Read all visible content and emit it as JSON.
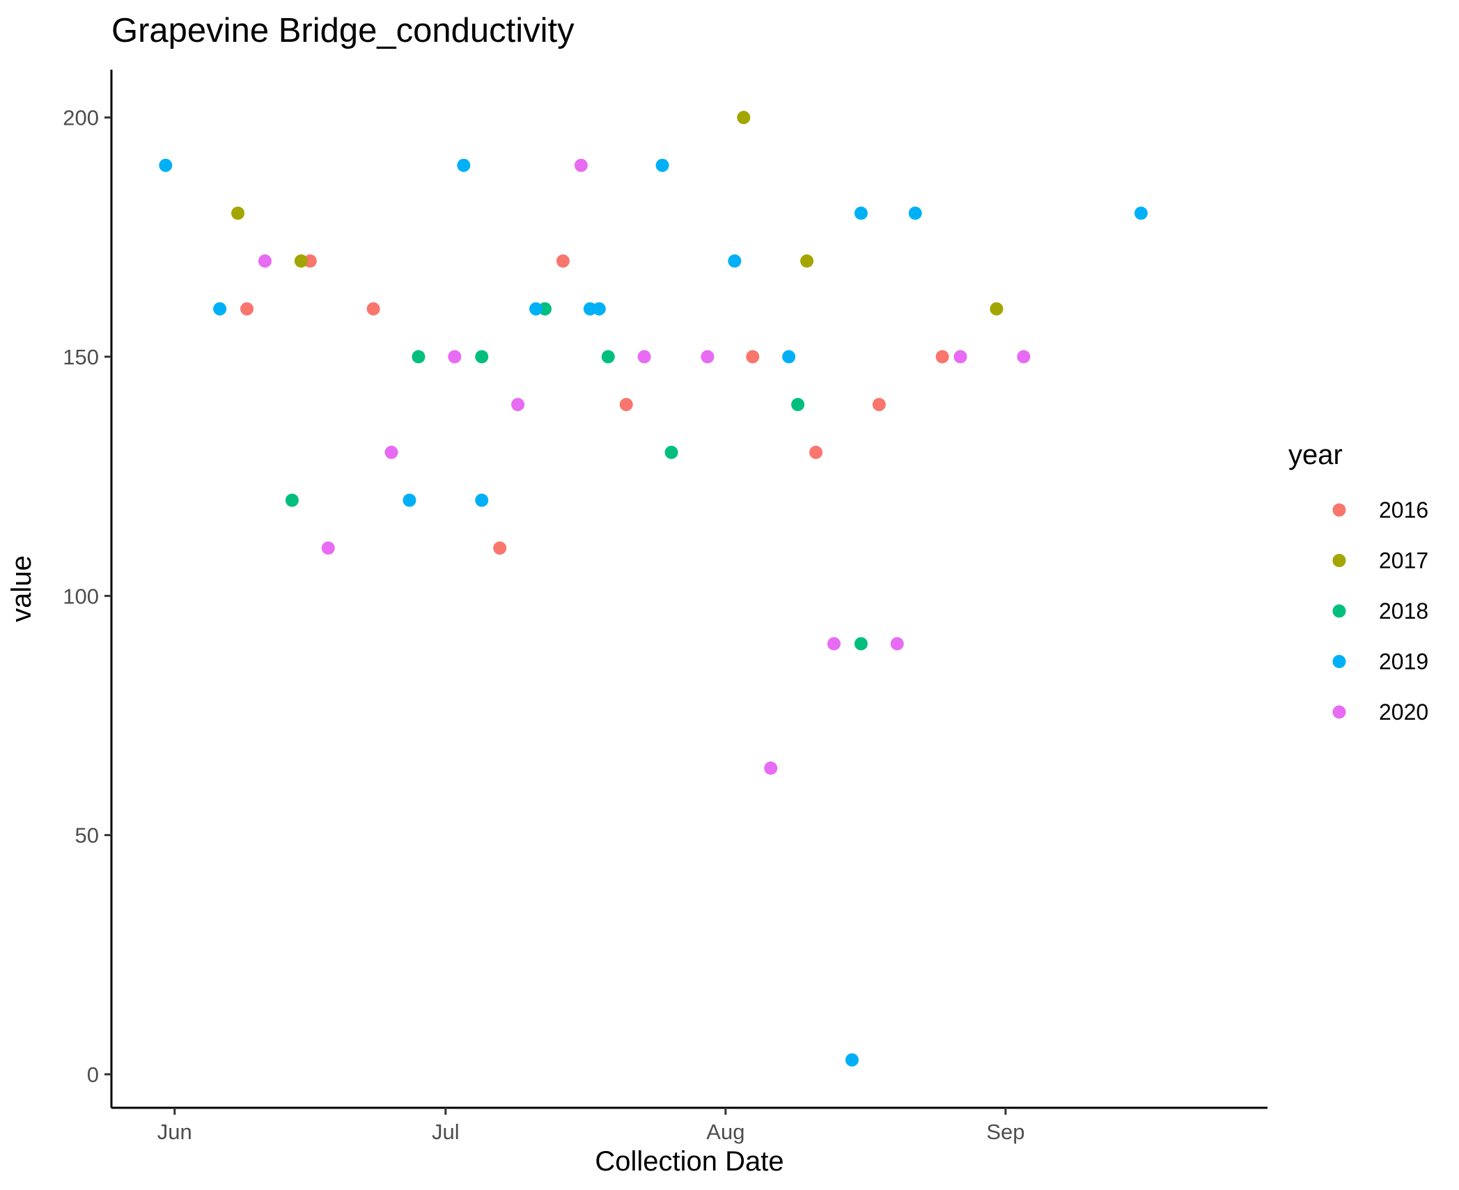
{
  "chart_data": {
    "type": "scatter",
    "title": "Grapevine Bridge_conductivity",
    "xlabel": "Collection Date",
    "ylabel": "value",
    "x_axis_type": "date",
    "xlim": [
      "2021-05-25",
      "2021-09-30"
    ],
    "ylim": [
      -7,
      210
    ],
    "x_ticks": [
      {
        "date": "2021-06-01",
        "label": "Jun"
      },
      {
        "date": "2021-07-01",
        "label": "Jul"
      },
      {
        "date": "2021-08-01",
        "label": "Aug"
      },
      {
        "date": "2021-09-01",
        "label": "Sep"
      }
    ],
    "y_ticks": [
      {
        "value": 0,
        "label": "0"
      },
      {
        "value": 50,
        "label": "50"
      },
      {
        "value": 100,
        "label": "100"
      },
      {
        "value": 150,
        "label": "150"
      },
      {
        "value": 200,
        "label": "200"
      }
    ],
    "grid": false,
    "legend": {
      "title": "year",
      "placement": "right"
    },
    "series": [
      {
        "name": "2016",
        "color": "#F8766D",
        "points": [
          {
            "x": "2021-06-09",
            "y": 160
          },
          {
            "x": "2021-06-16",
            "y": 170
          },
          {
            "x": "2021-06-23",
            "y": 160
          },
          {
            "x": "2021-07-07",
            "y": 110
          },
          {
            "x": "2021-07-14",
            "y": 170
          },
          {
            "x": "2021-07-21",
            "y": 140
          },
          {
            "x": "2021-08-04",
            "y": 150
          },
          {
            "x": "2021-08-11",
            "y": 130
          },
          {
            "x": "2021-08-18",
            "y": 140
          },
          {
            "x": "2021-08-25",
            "y": 150
          }
        ]
      },
      {
        "name": "2017",
        "color": "#A3A500",
        "points": [
          {
            "x": "2021-06-08",
            "y": 180
          },
          {
            "x": "2021-06-15",
            "y": 170
          },
          {
            "x": "2021-08-03",
            "y": 200
          },
          {
            "x": "2021-08-10",
            "y": 170
          },
          {
            "x": "2021-08-31",
            "y": 160
          }
        ]
      },
      {
        "name": "2018",
        "color": "#00BF7D",
        "points": [
          {
            "x": "2021-06-14",
            "y": 120
          },
          {
            "x": "2021-06-28",
            "y": 150
          },
          {
            "x": "2021-07-05",
            "y": 150
          },
          {
            "x": "2021-07-12",
            "y": 160
          },
          {
            "x": "2021-07-19",
            "y": 150
          },
          {
            "x": "2021-07-26",
            "y": 130
          },
          {
            "x": "2021-08-09",
            "y": 140
          },
          {
            "x": "2021-08-16",
            "y": 90
          }
        ]
      },
      {
        "name": "2019",
        "color": "#00B0F6",
        "points": [
          {
            "x": "2021-05-31",
            "y": 190
          },
          {
            "x": "2021-06-06",
            "y": 160
          },
          {
            "x": "2021-06-27",
            "y": 120
          },
          {
            "x": "2021-07-03",
            "y": 190
          },
          {
            "x": "2021-07-05",
            "y": 120
          },
          {
            "x": "2021-07-11",
            "y": 160
          },
          {
            "x": "2021-07-17",
            "y": 160
          },
          {
            "x": "2021-07-18",
            "y": 160
          },
          {
            "x": "2021-07-25",
            "y": 190
          },
          {
            "x": "2021-08-02",
            "y": 170
          },
          {
            "x": "2021-08-08",
            "y": 150
          },
          {
            "x": "2021-08-15",
            "y": 3
          },
          {
            "x": "2021-08-16",
            "y": 180
          },
          {
            "x": "2021-08-22",
            "y": 180
          },
          {
            "x": "2021-09-16",
            "y": 180
          }
        ]
      },
      {
        "name": "2020",
        "color": "#E76BF3",
        "points": [
          {
            "x": "2021-06-11",
            "y": 170
          },
          {
            "x": "2021-06-18",
            "y": 110
          },
          {
            "x": "2021-06-25",
            "y": 130
          },
          {
            "x": "2021-07-02",
            "y": 150
          },
          {
            "x": "2021-07-09",
            "y": 140
          },
          {
            "x": "2021-07-16",
            "y": 190
          },
          {
            "x": "2021-07-23",
            "y": 150
          },
          {
            "x": "2021-07-30",
            "y": 150
          },
          {
            "x": "2021-08-06",
            "y": 64
          },
          {
            "x": "2021-08-13",
            "y": 90
          },
          {
            "x": "2021-08-20",
            "y": 90
          },
          {
            "x": "2021-08-27",
            "y": 150
          },
          {
            "x": "2021-09-03",
            "y": 150
          }
        ]
      }
    ]
  }
}
